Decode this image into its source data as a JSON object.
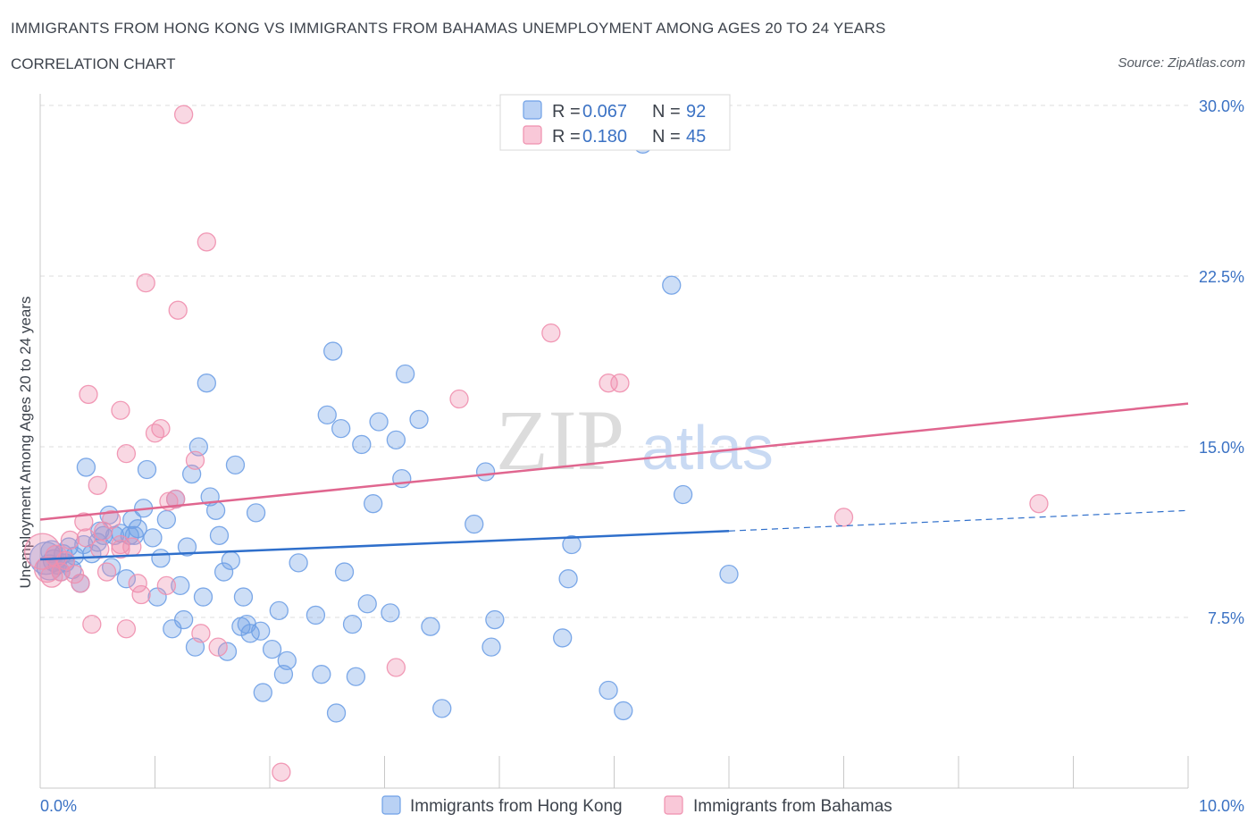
{
  "header": {
    "title": "IMMIGRANTS FROM HONG KONG VS IMMIGRANTS FROM BAHAMAS UNEMPLOYMENT AMONG AGES 20 TO 24 YEARS",
    "subtitle": "CORRELATION CHART",
    "source": "Source: ZipAtlas.com"
  },
  "watermark": {
    "zip": "ZIP",
    "atlas": "atlas"
  },
  "legend": {
    "rows": [
      {
        "r_label": "R =",
        "r_value": "0.067",
        "n_label": "N =",
        "n_value": "92",
        "color": "#6fa0e6"
      },
      {
        "r_label": "R =",
        "r_value": "0.180",
        "n_label": "N =",
        "n_value": "45",
        "color": "#ef8fae"
      }
    ]
  },
  "bottom_legend": [
    "Immigrants from Hong Kong",
    "Immigrants from Bahamas"
  ],
  "chart_data": {
    "type": "scatter",
    "ylabel": "Unemployment Among Ages 20 to 24 years",
    "xlim": [
      0,
      10
    ],
    "ylim": [
      0,
      30
    ],
    "x_tick_labels": [
      "0.0%",
      "10.0%"
    ],
    "y_ticks": [
      7.5,
      15.0,
      22.5,
      30.0
    ],
    "y_tick_labels": [
      "7.5%",
      "15.0%",
      "22.5%",
      "30.0%"
    ],
    "grid": true,
    "legend_position": "top-center",
    "series": [
      {
        "name": "Immigrants from Hong Kong",
        "color": "#6fa0e6",
        "line_color": "#2f6fcb",
        "trend": {
          "x0": 0.0,
          "y0": 10.05,
          "x1": 6.0,
          "y1": 11.3,
          "x_end": 10.0,
          "y_end": 12.2
        },
        "points": [
          [
            0.05,
            10.1,
            18
          ],
          [
            0.08,
            9.7,
            14
          ],
          [
            0.1,
            10.4,
            12
          ],
          [
            0.12,
            10.0,
            12
          ],
          [
            0.15,
            9.8,
            10
          ],
          [
            0.18,
            9.5,
            10
          ],
          [
            0.2,
            10.3,
            10
          ],
          [
            0.22,
            9.9,
            10
          ],
          [
            0.25,
            10.6,
            10
          ],
          [
            0.28,
            9.6,
            10
          ],
          [
            0.3,
            10.2,
            10
          ],
          [
            0.35,
            9.0,
            10
          ],
          [
            0.38,
            10.7,
            10
          ],
          [
            0.4,
            14.1,
            10
          ],
          [
            0.45,
            10.3,
            10
          ],
          [
            0.5,
            10.8,
            10
          ],
          [
            0.52,
            11.3,
            10
          ],
          [
            0.55,
            11.1,
            10
          ],
          [
            0.6,
            12.0,
            10
          ],
          [
            0.62,
            9.7,
            10
          ],
          [
            0.65,
            11.1,
            10
          ],
          [
            0.7,
            11.2,
            10
          ],
          [
            0.75,
            9.2,
            10
          ],
          [
            0.78,
            11.1,
            10
          ],
          [
            0.8,
            11.8,
            10
          ],
          [
            0.82,
            11.1,
            10
          ],
          [
            0.85,
            11.4,
            10
          ],
          [
            0.9,
            12.3,
            10
          ],
          [
            0.93,
            14.0,
            10
          ],
          [
            0.98,
            11.0,
            10
          ],
          [
            1.02,
            8.4,
            10
          ],
          [
            1.05,
            10.1,
            10
          ],
          [
            1.1,
            11.8,
            10
          ],
          [
            1.15,
            7.0,
            10
          ],
          [
            1.18,
            12.7,
            10
          ],
          [
            1.22,
            8.9,
            10
          ],
          [
            1.25,
            7.4,
            10
          ],
          [
            1.28,
            10.6,
            10
          ],
          [
            1.32,
            13.8,
            10
          ],
          [
            1.35,
            6.2,
            10
          ],
          [
            1.38,
            15.0,
            10
          ],
          [
            1.42,
            8.4,
            10
          ],
          [
            1.45,
            17.8,
            10
          ],
          [
            1.48,
            12.8,
            10
          ],
          [
            1.53,
            12.2,
            10
          ],
          [
            1.56,
            11.1,
            10
          ],
          [
            1.6,
            9.5,
            10
          ],
          [
            1.63,
            6.0,
            10
          ],
          [
            1.66,
            10.0,
            10
          ],
          [
            1.7,
            14.2,
            10
          ],
          [
            1.75,
            7.1,
            10
          ],
          [
            1.77,
            8.4,
            10
          ],
          [
            1.8,
            7.2,
            10
          ],
          [
            1.83,
            6.8,
            10
          ],
          [
            1.88,
            12.1,
            10
          ],
          [
            1.92,
            6.9,
            10
          ],
          [
            1.94,
            4.2,
            10
          ],
          [
            2.02,
            6.1,
            10
          ],
          [
            2.08,
            7.8,
            10
          ],
          [
            2.12,
            5.0,
            10
          ],
          [
            2.15,
            5.6,
            10
          ],
          [
            2.25,
            9.9,
            10
          ],
          [
            2.4,
            7.6,
            10
          ],
          [
            2.45,
            5.0,
            10
          ],
          [
            2.5,
            16.4,
            10
          ],
          [
            2.55,
            19.2,
            10
          ],
          [
            2.58,
            3.3,
            10
          ],
          [
            2.62,
            15.8,
            10
          ],
          [
            2.65,
            9.5,
            10
          ],
          [
            2.72,
            7.2,
            10
          ],
          [
            2.75,
            4.9,
            10
          ],
          [
            2.8,
            15.1,
            10
          ],
          [
            2.85,
            8.1,
            10
          ],
          [
            2.9,
            12.5,
            10
          ],
          [
            2.95,
            16.1,
            10
          ],
          [
            3.05,
            7.7,
            10
          ],
          [
            3.1,
            15.3,
            10
          ],
          [
            3.15,
            13.6,
            10
          ],
          [
            3.18,
            18.2,
            10
          ],
          [
            3.3,
            16.2,
            10
          ],
          [
            3.4,
            7.1,
            10
          ],
          [
            3.5,
            3.5,
            10
          ],
          [
            3.78,
            11.6,
            10
          ],
          [
            3.88,
            13.9,
            10
          ],
          [
            3.93,
            6.2,
            10
          ],
          [
            3.96,
            7.4,
            10
          ],
          [
            4.55,
            6.6,
            10
          ],
          [
            4.6,
            9.2,
            10
          ],
          [
            4.63,
            10.7,
            10
          ],
          [
            4.95,
            4.3,
            10
          ],
          [
            5.08,
            3.4,
            10
          ],
          [
            5.25,
            28.3,
            10
          ],
          [
            5.5,
            22.1,
            10
          ],
          [
            5.6,
            12.9,
            10
          ],
          [
            6.0,
            9.4,
            10
          ]
        ]
      },
      {
        "name": "Immigrants from Bahamas",
        "color": "#ef8fae",
        "line_color": "#e0668f",
        "trend": {
          "x0": 0.0,
          "y0": 11.8,
          "x1": 10.0,
          "y1": 16.9
        },
        "points": [
          [
            0.02,
            10.4,
            20
          ],
          [
            0.06,
            9.6,
            14
          ],
          [
            0.1,
            9.3,
            12
          ],
          [
            0.14,
            10.2,
            12
          ],
          [
            0.18,
            9.5,
            10
          ],
          [
            0.22,
            10.0,
            10
          ],
          [
            0.26,
            10.9,
            10
          ],
          [
            0.3,
            9.4,
            10
          ],
          [
            0.35,
            9.0,
            10
          ],
          [
            0.38,
            11.7,
            10
          ],
          [
            0.4,
            11.0,
            10
          ],
          [
            0.42,
            17.3,
            10
          ],
          [
            0.45,
            7.2,
            10
          ],
          [
            0.52,
            10.5,
            10
          ],
          [
            0.5,
            13.3,
            10
          ],
          [
            0.55,
            11.3,
            10
          ],
          [
            0.58,
            9.5,
            10
          ],
          [
            0.62,
            11.8,
            10
          ],
          [
            0.7,
            10.7,
            10
          ],
          [
            0.75,
            14.7,
            10
          ],
          [
            0.7,
            10.5,
            10
          ],
          [
            0.7,
            16.6,
            10
          ],
          [
            0.75,
            7.0,
            10
          ],
          [
            0.8,
            10.6,
            10
          ],
          [
            0.85,
            9.0,
            10
          ],
          [
            0.88,
            8.5,
            10
          ],
          [
            0.92,
            22.2,
            10
          ],
          [
            1.0,
            15.6,
            10
          ],
          [
            1.05,
            15.8,
            10
          ],
          [
            1.1,
            8.9,
            10
          ],
          [
            1.12,
            12.6,
            10
          ],
          [
            1.18,
            12.7,
            10
          ],
          [
            1.2,
            21.0,
            10
          ],
          [
            1.25,
            29.6,
            10
          ],
          [
            1.35,
            14.4,
            10
          ],
          [
            1.4,
            6.8,
            10
          ],
          [
            1.45,
            24.0,
            10
          ],
          [
            1.55,
            6.2,
            10
          ],
          [
            2.1,
            0.7,
            10
          ],
          [
            3.1,
            5.3,
            10
          ],
          [
            3.65,
            17.1,
            10
          ],
          [
            4.45,
            20.0,
            10
          ],
          [
            4.95,
            17.8,
            10
          ],
          [
            5.05,
            17.8,
            10
          ],
          [
            7.0,
            11.9,
            10
          ],
          [
            8.7,
            12.5,
            10
          ]
        ]
      }
    ]
  }
}
